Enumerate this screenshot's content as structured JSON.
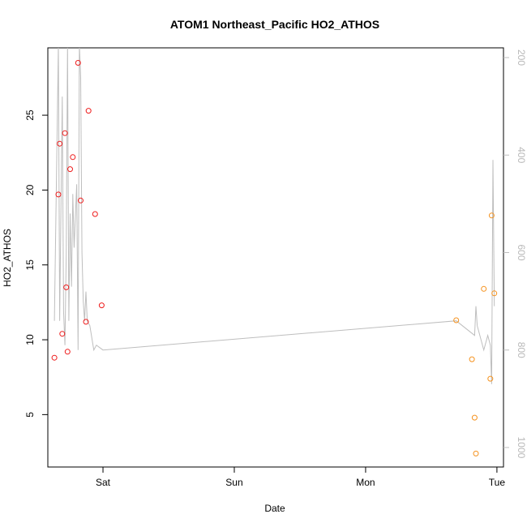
{
  "chart_data": {
    "type": "scatter",
    "title": "ATOM1 Northeast_Pacific HO2_ATHOS",
    "xlabel": "Date",
    "ylabel": "HO2_ATHOS",
    "x_ticks": [
      "Sat",
      "Sun",
      "Mon",
      "Tue"
    ],
    "x_tick_pos": [
      0.42,
      1.42,
      2.42,
      3.42
    ],
    "xlim": [
      0.0,
      3.47
    ],
    "ylim": [
      1.5,
      29.5
    ],
    "y_ticks": [
      5,
      10,
      15,
      20,
      25
    ],
    "right_axis": {
      "reversed": true,
      "ticks": [
        200,
        400,
        600,
        800,
        1000
      ],
      "lim": [
        180,
        1040
      ],
      "color": "#bebebe"
    },
    "colors": {
      "series_red": "#ee1c1c",
      "series_orange": "#f5921e",
      "profile_line": "#bebebe"
    },
    "series": [
      {
        "color": "#ee1c1c",
        "x": [
          0.05,
          0.08,
          0.09,
          0.11,
          0.13,
          0.14,
          0.15,
          0.17,
          0.19,
          0.23,
          0.25,
          0.29,
          0.31,
          0.36
        ],
        "y": [
          8.8,
          19.7,
          23.1,
          10.4,
          23.8,
          13.5,
          9.2,
          21.4,
          22.2,
          28.5,
          19.3,
          11.2,
          25.3,
          18.4
        ]
      },
      {
        "color": "#ee1c1c",
        "x": [
          0.41
        ],
        "y": [
          12.3
        ]
      },
      {
        "color": "#f5921e",
        "x": [
          3.11,
          3.23,
          3.25,
          3.26,
          3.32,
          3.37,
          3.38,
          3.4
        ],
        "y": [
          11.3,
          8.7,
          4.8,
          2.4,
          13.4,
          7.4,
          18.3,
          13.1
        ]
      }
    ],
    "profile_line": {
      "x": [
        0.05,
        0.08,
        0.09,
        0.11,
        0.12,
        0.13,
        0.14,
        0.15,
        0.16,
        0.17,
        0.18,
        0.19,
        0.2,
        0.22,
        0.23,
        0.24,
        0.25,
        0.26,
        0.27,
        0.28,
        0.29,
        0.3,
        0.32,
        0.35,
        0.37,
        0.42,
        3.11,
        3.25,
        3.26,
        3.27,
        3.32,
        3.35,
        3.37,
        3.38,
        3.39,
        3.4
      ],
      "depth": [
        740,
        175,
        740,
        280,
        720,
        790,
        600,
        170,
        740,
        520,
        670,
        480,
        590,
        460,
        800,
        175,
        240,
        600,
        700,
        740,
        680,
        740,
        750,
        800,
        790,
        800,
        740,
        770,
        710,
        750,
        800,
        770,
        790,
        870,
        410,
        710
      ]
    }
  }
}
